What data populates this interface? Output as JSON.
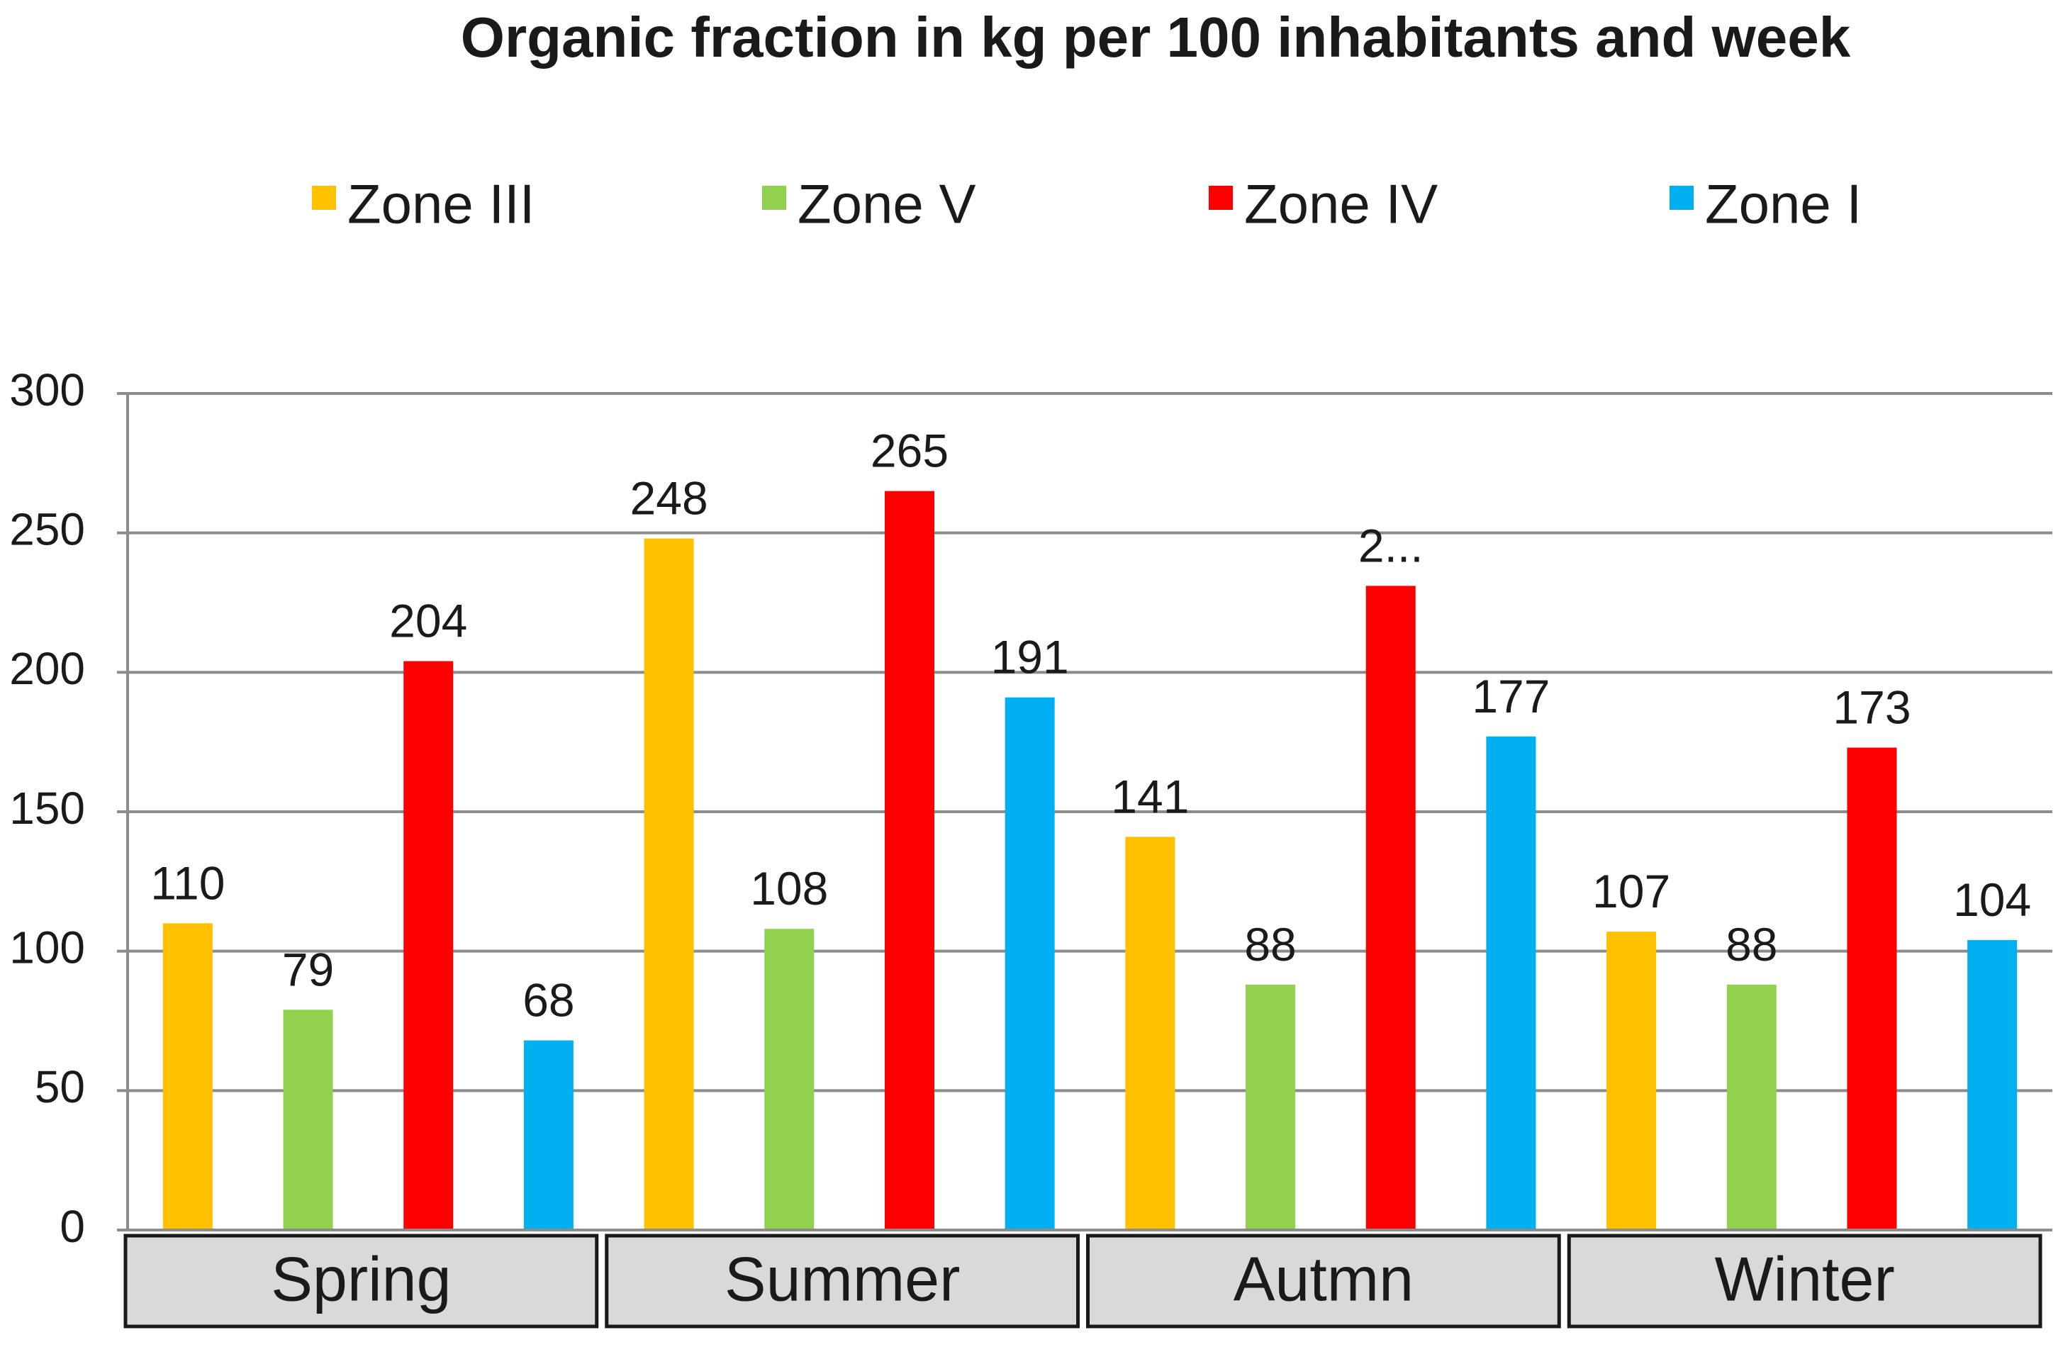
{
  "chart_data": {
    "type": "bar",
    "title": "Organic fraction in kg per 100 inhabitants and week",
    "xlabel": "",
    "ylabel": "",
    "ylim": [
      0,
      300
    ],
    "yticks": [
      0,
      50,
      100,
      150,
      200,
      250,
      300
    ],
    "grid": true,
    "legend_position": "top",
    "categories": [
      "Spring",
      "Summer",
      "Autmn",
      "Winter"
    ],
    "series": [
      {
        "name": "Zone III",
        "color": "#FFC000",
        "values": [
          110,
          248,
          141,
          107
        ],
        "labels": [
          "110",
          "248",
          "141",
          "107"
        ]
      },
      {
        "name": "Zone V",
        "color": "#92D050",
        "values": [
          79,
          108,
          88,
          88
        ],
        "labels": [
          "79",
          "108",
          "88",
          "88"
        ]
      },
      {
        "name": "Zone IV",
        "color": "#FF0000",
        "values": [
          204,
          265,
          231,
          173
        ],
        "labels": [
          "204",
          "265",
          "2...",
          "173"
        ]
      },
      {
        "name": "Zone I",
        "color": "#00B0F0",
        "values": [
          68,
          191,
          177,
          104
        ],
        "labels": [
          "68",
          "191",
          "177",
          "104"
        ]
      }
    ]
  }
}
